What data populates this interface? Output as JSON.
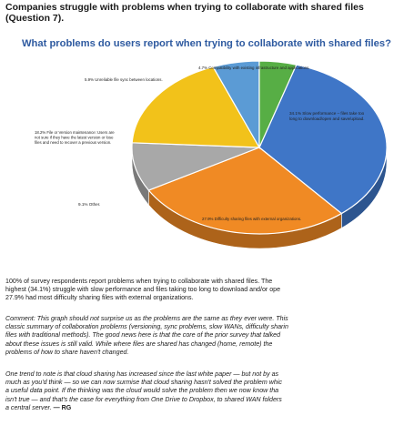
{
  "heading": {
    "line1": "Companies struggle with problems when trying to collaborate with shared files",
    "line2": "(Question 7)."
  },
  "chart_data": {
    "type": "pie",
    "title": "What problems do users report when trying to collaborate with shared files?",
    "slices": [
      {
        "value": 34.1,
        "label": [
          "34.1% Slow performance – files take too",
          "long to download/open and save/upload."
        ],
        "color": "#3f76c7"
      },
      {
        "value": 27.9,
        "label": [
          "27.9% Difficulty sharing files with external organizations."
        ],
        "color": "#f08a24"
      },
      {
        "value": 9.1,
        "label": [
          "9.1% Other."
        ],
        "color": "#a8a8a8"
      },
      {
        "value": 18.2,
        "label": [
          "18.2% File or Version maintenance: Users are",
          "not sure if they have the latest version or lose",
          "files and need to recover a previous version."
        ],
        "color": "#f2c21a"
      },
      {
        "value": 5.9,
        "label": [
          "5.9% Unreliable file sync between locations."
        ],
        "color": "#5b9bd5"
      },
      {
        "value": 4.7,
        "label": [
          "4.7% Compatibility with existing infrastructure and applications."
        ],
        "color": "#57ae45"
      }
    ]
  },
  "para1": [
    "100% of survey respondents report problems when trying to collaborate with shared files. The",
    "highest (34.1%) struggle with slow performance and files taking too long to download and/or ope",
    "27.9% had most difficulty sharing files with external organizations."
  ],
  "para2": [
    "Comment: This graph should not surprise us as the problems are the same as they ever were. This",
    "classic summary of collaboration problems (versioning, sync problems, slow WANs, difficulty sharin",
    "files with traditional methods). The good news here is that the core of the prior survey that talked",
    "about these issues is still valid. While where files are shared has changed (home, remote) the",
    "problems of how to share haven't changed."
  ],
  "para3": [
    "One trend to note is that cloud sharing has increased since the last white paper — but not by as",
    "much as you'd think — so we can now surmise that cloud sharing hasn't solved the problem whic",
    "a useful data point. If the thinking was the cloud would solve the problem then we now know tha",
    "isn't true — and that's the case for everything from One Drive to Dropbox, to shared WAN folders",
    "a central server."
  ],
  "signature": "— RG"
}
